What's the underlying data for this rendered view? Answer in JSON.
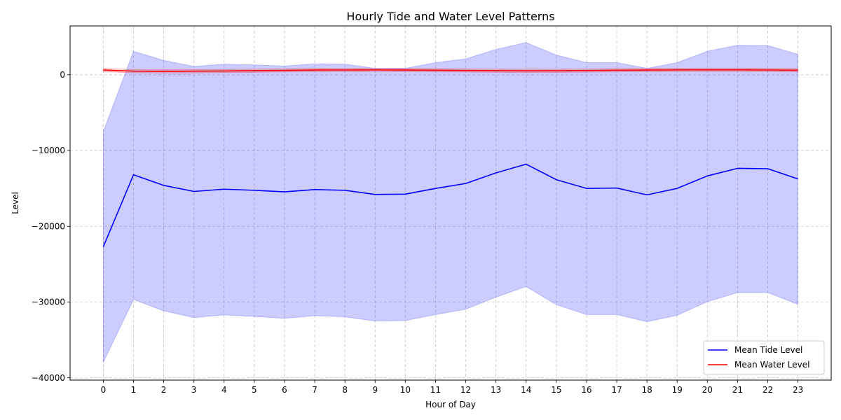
{
  "chart_data": {
    "type": "line",
    "title": "Hourly Tide and Water Level Patterns",
    "xlabel": "Hour of Day",
    "ylabel": "Level",
    "x": [
      0,
      1,
      2,
      3,
      4,
      5,
      6,
      7,
      8,
      9,
      10,
      11,
      12,
      13,
      14,
      15,
      16,
      17,
      18,
      19,
      20,
      21,
      22,
      23
    ],
    "xlim": [
      -1.1,
      24.1
    ],
    "ylim": [
      -40300,
      6450
    ],
    "yticks": [
      -40000,
      -30000,
      -20000,
      -10000,
      0
    ],
    "ytick_labels": [
      "−40000",
      "−30000",
      "−20000",
      "−10000",
      "0"
    ],
    "grid": true,
    "legend_position": "lower-right",
    "series": [
      {
        "name": "Mean Tide Level",
        "color": "#0000ff",
        "band_color": "#0000ff",
        "values": [
          -22700,
          -13200,
          -14600,
          -15400,
          -15100,
          -15250,
          -15450,
          -15150,
          -15250,
          -15800,
          -15750,
          -15000,
          -14350,
          -12950,
          -11800,
          -13850,
          -15000,
          -14950,
          -15850,
          -15000,
          -13350,
          -12350,
          -12400,
          -13750
        ],
        "upper": [
          -7500,
          3100,
          1900,
          1100,
          1400,
          1300,
          1150,
          1450,
          1400,
          850,
          850,
          1600,
          2100,
          3350,
          4250,
          2600,
          1600,
          1600,
          850,
          1600,
          3100,
          3900,
          3850,
          2700
        ],
        "lower": [
          -37950,
          -29650,
          -31150,
          -32050,
          -31700,
          -31900,
          -32150,
          -31800,
          -31950,
          -32500,
          -32450,
          -31650,
          -30950,
          -29350,
          -27950,
          -30350,
          -31650,
          -31650,
          -32600,
          -31750,
          -29950,
          -28750,
          -28750,
          -30300
        ]
      },
      {
        "name": "Mean Water Level",
        "color": "#ff0000",
        "band_color": "#ff0000",
        "values": [
          620,
          480,
          450,
          470,
          500,
          540,
          580,
          620,
          630,
          640,
          620,
          600,
          570,
          540,
          520,
          530,
          560,
          600,
          620,
          640,
          650,
          650,
          630,
          600
        ],
        "upper": [
          850,
          700,
          680,
          700,
          720,
          760,
          800,
          840,
          850,
          860,
          840,
          820,
          790,
          760,
          740,
          750,
          780,
          820,
          840,
          860,
          870,
          870,
          850,
          820
        ],
        "lower": [
          390,
          260,
          220,
          240,
          280,
          320,
          360,
          400,
          410,
          420,
          400,
          380,
          350,
          320,
          300,
          310,
          340,
          380,
          400,
          420,
          430,
          430,
          410,
          380
        ]
      }
    ]
  }
}
